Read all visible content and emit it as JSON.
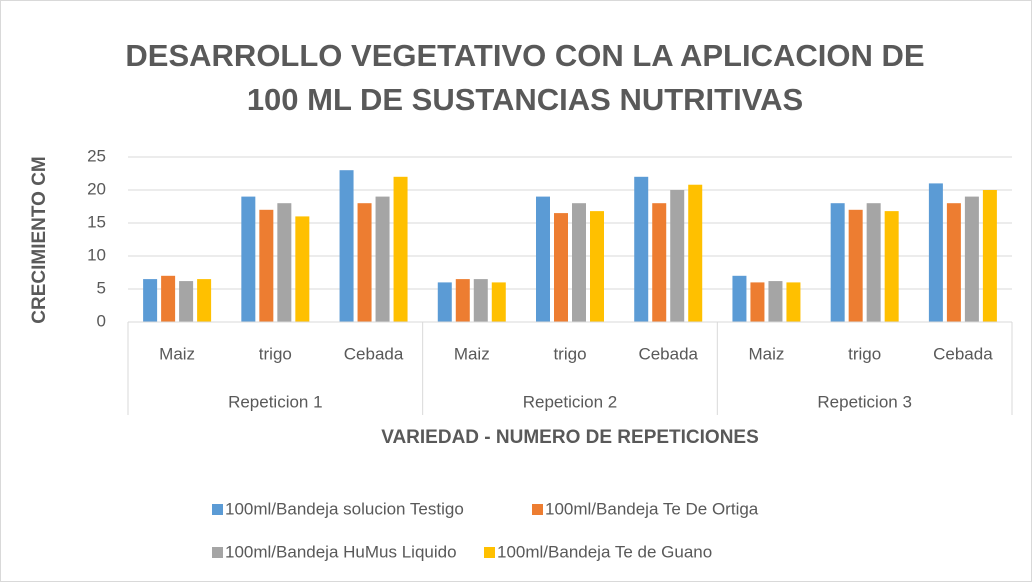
{
  "chart_data": {
    "type": "bar",
    "title": [
      "DESARROLLO VEGETATIVO CON LA APLICACION DE",
      "100 ML DE SUSTANCIAS NUTRITIVAS"
    ],
    "x_label": "VARIEDAD - NUMERO DE REPETICIONES",
    "y_label": "CRECIMIENTO CM",
    "categories": [
      "Maiz",
      "trigo",
      "Cebada",
      "Maiz",
      "trigo",
      "Cebada",
      "Maiz",
      "trigo",
      "Cebada"
    ],
    "category_groups": [
      "Repeticion 1",
      "Repeticion 2",
      "Repeticion 3"
    ],
    "series": [
      {
        "name": "100ml/Bandeja solucion Testigo",
        "color": "#5b9bd5",
        "values": [
          6.5,
          19,
          23,
          6,
          19,
          22,
          7,
          18,
          21
        ]
      },
      {
        "name": "100ml/Bandeja Te De Ortiga",
        "color": "#ed7d31",
        "values": [
          7,
          17,
          18,
          6.5,
          16.5,
          18,
          6,
          17,
          18
        ]
      },
      {
        "name": "100ml/Bandeja HuMus Liquido",
        "color": "#a5a5a5",
        "values": [
          6.2,
          18,
          19,
          6.5,
          18,
          20,
          6.2,
          18,
          19
        ]
      },
      {
        "name": "100ml/Bandeja Te de Guano",
        "color": "#ffc000",
        "values": [
          6.5,
          16,
          22,
          6,
          16.8,
          20.8,
          6,
          16.8,
          20
        ]
      }
    ],
    "ylim": [
      0,
      25
    ],
    "yticks": [
      0,
      5,
      10,
      15,
      20,
      25
    ],
    "grid": true,
    "legend": "bottom"
  }
}
